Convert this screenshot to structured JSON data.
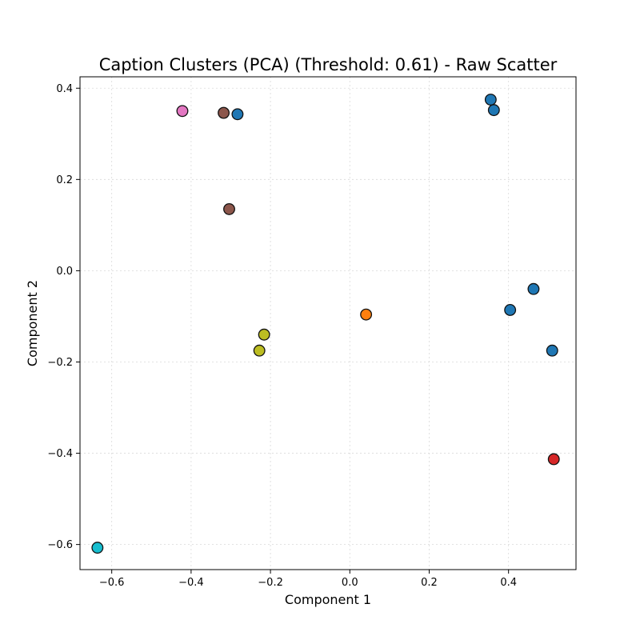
{
  "chart_data": {
    "type": "scatter",
    "title": "Caption Clusters (PCA) (Threshold: 0.61) - Raw Scatter",
    "xlabel": "Component 1",
    "ylabel": "Component 2",
    "xlim": [
      -0.68,
      0.57
    ],
    "ylim": [
      -0.655,
      0.425
    ],
    "xticks": [
      -0.6,
      -0.4,
      -0.2,
      0.0,
      0.2,
      0.4
    ],
    "xtick_labels": [
      "−0.6",
      "−0.4",
      "−0.2",
      "0.0",
      "0.2",
      "0.4"
    ],
    "yticks": [
      0.4,
      0.2,
      0.0,
      -0.2,
      -0.4,
      -0.6
    ],
    "ytick_labels": [
      "0.4",
      "0.2",
      "0.0",
      "−0.2",
      "−0.4",
      "−0.6"
    ],
    "grid": true,
    "legend": "none",
    "points": [
      {
        "x": -0.422,
        "y": 0.35,
        "color": "#e377c2"
      },
      {
        "x": -0.318,
        "y": 0.346,
        "color": "#8c564b"
      },
      {
        "x": -0.283,
        "y": 0.343,
        "color": "#1f77b4"
      },
      {
        "x": -0.304,
        "y": 0.135,
        "color": "#8c564b"
      },
      {
        "x": 0.355,
        "y": 0.375,
        "color": "#1f77b4"
      },
      {
        "x": 0.363,
        "y": 0.352,
        "color": "#1f77b4"
      },
      {
        "x": 0.463,
        "y": -0.04,
        "color": "#1f77b4"
      },
      {
        "x": 0.404,
        "y": -0.086,
        "color": "#1f77b4"
      },
      {
        "x": 0.51,
        "y": -0.175,
        "color": "#1f77b4"
      },
      {
        "x": 0.041,
        "y": -0.096,
        "color": "#ff7f0e"
      },
      {
        "x": -0.216,
        "y": -0.14,
        "color": "#bcbd22"
      },
      {
        "x": -0.228,
        "y": -0.175,
        "color": "#bcbd22"
      },
      {
        "x": 0.514,
        "y": -0.413,
        "color": "#d62728"
      },
      {
        "x": -0.636,
        "y": -0.607,
        "color": "#17becf"
      }
    ]
  }
}
